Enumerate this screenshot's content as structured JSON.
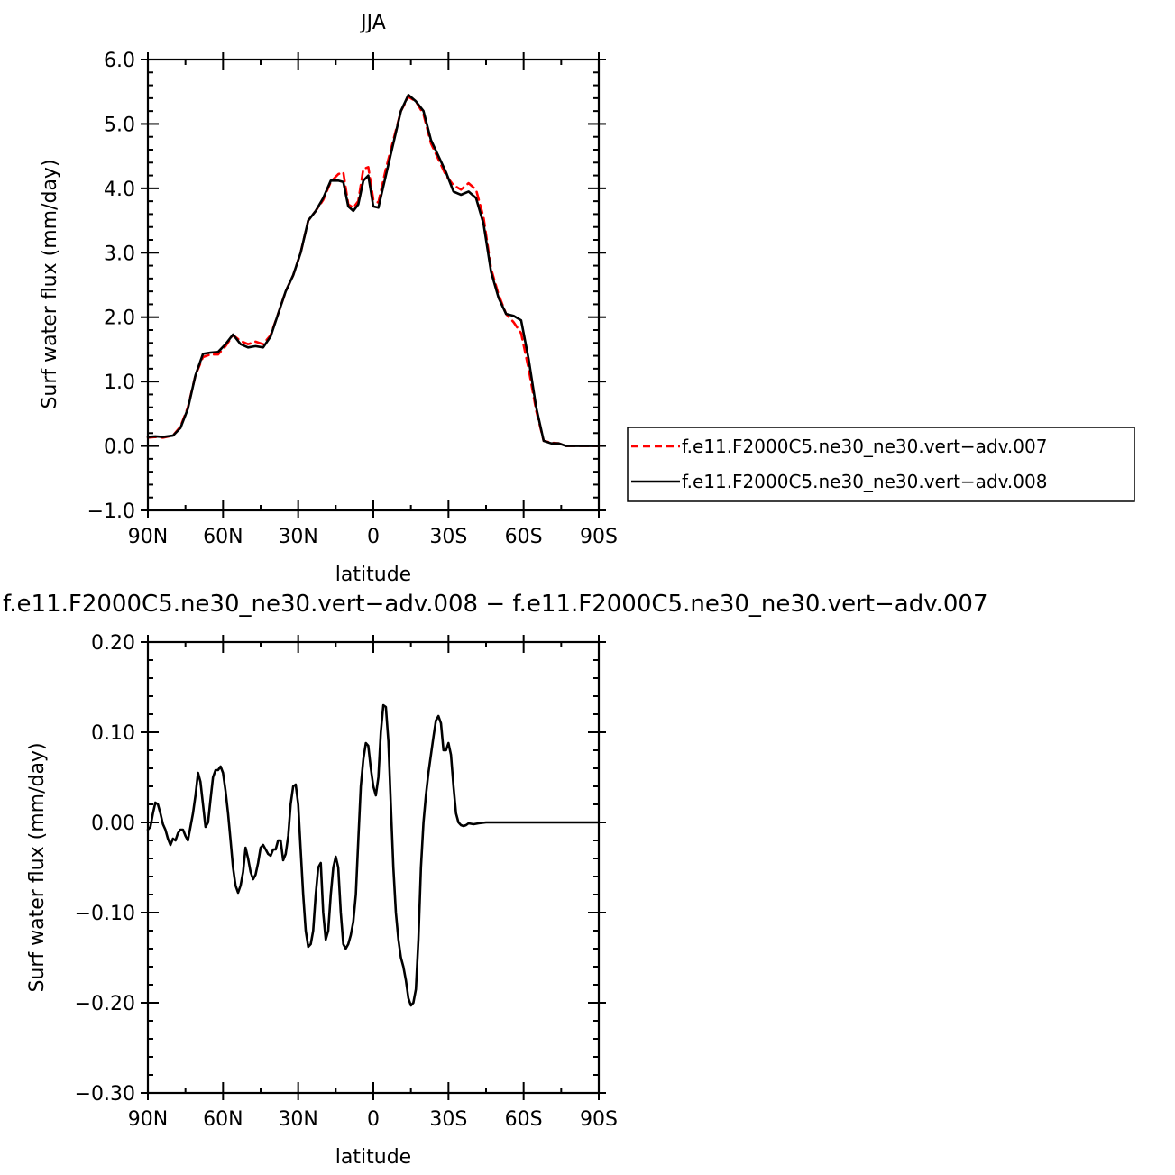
{
  "chart_data": [
    {
      "type": "line",
      "title": "JJA",
      "xlabel": "latitude",
      "ylabel": "Surf water flux (mm/day)",
      "xlim": [
        90,
        -90
      ],
      "ylim": [
        -1.0,
        6.0
      ],
      "x_tick_labels": [
        "90N",
        "60N",
        "30N",
        "0",
        "30S",
        "60S",
        "90S"
      ],
      "y_tick_labels": [
        "6.0",
        "5.0",
        "4.0",
        "3.0",
        "2.0",
        "1.0",
        "0.0",
        "−1.0"
      ],
      "legend_position": "right",
      "series": [
        {
          "name": "f.e11.F2000C5.ne30_ne30.vert−adv.007",
          "color": "#ff0000",
          "dash": "dashed",
          "points": [
            [
              90,
              0.13
            ],
            [
              87,
              0.14
            ],
            [
              84,
              0.13
            ],
            [
              80,
              0.16
            ],
            [
              77,
              0.3
            ],
            [
              74,
              0.6
            ],
            [
              71,
              1.1
            ],
            [
              68,
              1.38
            ],
            [
              65,
              1.42
            ],
            [
              62,
              1.42
            ],
            [
              59,
              1.55
            ],
            [
              56,
              1.72
            ],
            [
              53,
              1.63
            ],
            [
              50,
              1.58
            ],
            [
              47,
              1.62
            ],
            [
              44,
              1.58
            ],
            [
              41,
              1.72
            ],
            [
              38,
              2.05
            ],
            [
              35,
              2.4
            ],
            [
              32,
              2.65
            ],
            [
              29,
              3.0
            ],
            [
              26,
              3.5
            ],
            [
              23,
              3.65
            ],
            [
              20,
              3.82
            ],
            [
              17,
              4.1
            ],
            [
              14,
              4.22
            ],
            [
              12,
              4.25
            ],
            [
              10,
              3.75
            ],
            [
              8,
              3.7
            ],
            [
              6,
              3.8
            ],
            [
              4,
              4.3
            ],
            [
              2,
              4.33
            ],
            [
              0,
              3.82
            ],
            [
              -2,
              3.78
            ],
            [
              -5,
              4.3
            ],
            [
              -8,
              4.75
            ],
            [
              -11,
              5.2
            ],
            [
              -14,
              5.42
            ],
            [
              -17,
              5.35
            ],
            [
              -20,
              5.15
            ],
            [
              -23,
              4.7
            ],
            [
              -26,
              4.45
            ],
            [
              -29,
              4.2
            ],
            [
              -32,
              4.05
            ],
            [
              -35,
              3.98
            ],
            [
              -38,
              4.08
            ],
            [
              -41,
              3.98
            ],
            [
              -44,
              3.55
            ],
            [
              -47,
              2.75
            ],
            [
              -50,
              2.35
            ],
            [
              -53,
              2.05
            ],
            [
              -56,
              1.92
            ],
            [
              -59,
              1.75
            ],
            [
              -62,
              1.2
            ],
            [
              -65,
              0.55
            ],
            [
              -68,
              0.08
            ],
            [
              -71,
              0.05
            ],
            [
              -74,
              0.04
            ],
            [
              -77,
              0.0
            ],
            [
              -80,
              0.0
            ],
            [
              -84,
              0.0
            ],
            [
              -90,
              0.0
            ]
          ]
        },
        {
          "name": "f.e11.F2000C5.ne30_ne30.vert−adv.008",
          "color": "#000000",
          "dash": "solid",
          "points": [
            [
              90,
              0.14
            ],
            [
              87,
              0.15
            ],
            [
              84,
              0.14
            ],
            [
              80,
              0.16
            ],
            [
              77,
              0.28
            ],
            [
              74,
              0.58
            ],
            [
              71,
              1.1
            ],
            [
              68,
              1.43
            ],
            [
              65,
              1.45
            ],
            [
              62,
              1.46
            ],
            [
              59,
              1.58
            ],
            [
              56,
              1.73
            ],
            [
              53,
              1.58
            ],
            [
              50,
              1.53
            ],
            [
              47,
              1.55
            ],
            [
              44,
              1.53
            ],
            [
              41,
              1.7
            ],
            [
              38,
              2.05
            ],
            [
              35,
              2.4
            ],
            [
              32,
              2.65
            ],
            [
              29,
              3.0
            ],
            [
              26,
              3.5
            ],
            [
              23,
              3.65
            ],
            [
              20,
              3.85
            ],
            [
              17,
              4.12
            ],
            [
              14,
              4.12
            ],
            [
              12,
              4.1
            ],
            [
              10,
              3.72
            ],
            [
              8,
              3.65
            ],
            [
              6,
              3.75
            ],
            [
              4,
              4.12
            ],
            [
              2,
              4.2
            ],
            [
              0,
              3.72
            ],
            [
              -2,
              3.7
            ],
            [
              -5,
              4.2
            ],
            [
              -8,
              4.7
            ],
            [
              -11,
              5.2
            ],
            [
              -14,
              5.45
            ],
            [
              -17,
              5.35
            ],
            [
              -20,
              5.2
            ],
            [
              -23,
              4.75
            ],
            [
              -26,
              4.5
            ],
            [
              -29,
              4.25
            ],
            [
              -32,
              3.95
            ],
            [
              -35,
              3.9
            ],
            [
              -38,
              3.95
            ],
            [
              -41,
              3.85
            ],
            [
              -44,
              3.45
            ],
            [
              -47,
              2.7
            ],
            [
              -50,
              2.3
            ],
            [
              -53,
              2.05
            ],
            [
              -56,
              2.02
            ],
            [
              -59,
              1.95
            ],
            [
              -62,
              1.35
            ],
            [
              -65,
              0.6
            ],
            [
              -68,
              0.08
            ],
            [
              -71,
              0.04
            ],
            [
              -74,
              0.04
            ],
            [
              -77,
              0.0
            ],
            [
              -80,
              0.0
            ],
            [
              -84,
              0.0
            ],
            [
              -90,
              0.0
            ]
          ]
        }
      ]
    },
    {
      "type": "line",
      "title": "f.e11.F2000C5.ne30_ne30.vert−adv.008 − f.e11.F2000C5.ne30_ne30.vert−adv.007",
      "xlabel": "latitude",
      "ylabel": "Surf water flux (mm/day)",
      "xlim": [
        90,
        -90
      ],
      "ylim": [
        -0.3,
        0.2
      ],
      "x_tick_labels": [
        "90N",
        "60N",
        "30N",
        "0",
        "30S",
        "60S",
        "90S"
      ],
      "y_tick_labels": [
        "0.20",
        "0.10",
        "0.00",
        "−0.10",
        "−0.20",
        "−0.30"
      ],
      "series": [
        {
          "color": "#000000",
          "dash": "solid",
          "points": [
            [
              90,
              -0.008
            ],
            [
              89,
              -0.005
            ],
            [
              88,
              0.01
            ],
            [
              87,
              0.022
            ],
            [
              86,
              0.02
            ],
            [
              85,
              0.01
            ],
            [
              84,
              -0.002
            ],
            [
              83,
              -0.008
            ],
            [
              82,
              -0.018
            ],
            [
              81,
              -0.025
            ],
            [
              80,
              -0.018
            ],
            [
              79,
              -0.02
            ],
            [
              78,
              -0.012
            ],
            [
              77,
              -0.008
            ],
            [
              76,
              -0.008
            ],
            [
              75,
              -0.015
            ],
            [
              74,
              -0.02
            ],
            [
              73,
              -0.005
            ],
            [
              72,
              0.01
            ],
            [
              71,
              0.03
            ],
            [
              70,
              0.055
            ],
            [
              69,
              0.045
            ],
            [
              68,
              0.02
            ],
            [
              67,
              -0.005
            ],
            [
              66,
              0.0
            ],
            [
              65,
              0.025
            ],
            [
              64,
              0.05
            ],
            [
              63,
              0.058
            ],
            [
              62,
              0.058
            ],
            [
              61,
              0.062
            ],
            [
              60,
              0.055
            ],
            [
              59,
              0.035
            ],
            [
              58,
              0.01
            ],
            [
              57,
              -0.02
            ],
            [
              56,
              -0.05
            ],
            [
              55,
              -0.07
            ],
            [
              54,
              -0.078
            ],
            [
              53,
              -0.07
            ],
            [
              52,
              -0.055
            ],
            [
              51,
              -0.028
            ],
            [
              50,
              -0.04
            ],
            [
              49,
              -0.055
            ],
            [
              48,
              -0.063
            ],
            [
              47,
              -0.058
            ],
            [
              46,
              -0.045
            ],
            [
              45,
              -0.028
            ],
            [
              44,
              -0.025
            ],
            [
              43,
              -0.03
            ],
            [
              42,
              -0.035
            ],
            [
              41,
              -0.037
            ],
            [
              40,
              -0.03
            ],
            [
              39,
              -0.03
            ],
            [
              38,
              -0.02
            ],
            [
              37,
              -0.02
            ],
            [
              36,
              -0.042
            ],
            [
              35,
              -0.035
            ],
            [
              34,
              -0.015
            ],
            [
              33,
              0.02
            ],
            [
              32,
              0.04
            ],
            [
              31,
              0.042
            ],
            [
              30,
              0.02
            ],
            [
              29,
              -0.03
            ],
            [
              28,
              -0.08
            ],
            [
              27,
              -0.12
            ],
            [
              26,
              -0.138
            ],
            [
              25,
              -0.135
            ],
            [
              24,
              -0.12
            ],
            [
              23,
              -0.08
            ],
            [
              22,
              -0.05
            ],
            [
              21,
              -0.045
            ],
            [
              20,
              -0.1
            ],
            [
              19,
              -0.13
            ],
            [
              18,
              -0.12
            ],
            [
              17,
              -0.08
            ],
            [
              16,
              -0.05
            ],
            [
              15,
              -0.038
            ],
            [
              14,
              -0.05
            ],
            [
              13,
              -0.1
            ],
            [
              12,
              -0.135
            ],
            [
              11,
              -0.14
            ],
            [
              10,
              -0.135
            ],
            [
              9,
              -0.125
            ],
            [
              8,
              -0.11
            ],
            [
              7,
              -0.08
            ],
            [
              6,
              -0.02
            ],
            [
              5,
              0.04
            ],
            [
              4,
              0.07
            ],
            [
              3,
              0.088
            ],
            [
              2,
              0.085
            ],
            [
              1,
              0.06
            ],
            [
              0,
              0.04
            ],
            [
              -1,
              0.03
            ],
            [
              -2,
              0.05
            ],
            [
              -3,
              0.1
            ],
            [
              -4,
              0.13
            ],
            [
              -5,
              0.128
            ],
            [
              -6,
              0.09
            ],
            [
              -7,
              0.02
            ],
            [
              -8,
              -0.05
            ],
            [
              -9,
              -0.1
            ],
            [
              -10,
              -0.13
            ],
            [
              -11,
              -0.15
            ],
            [
              -12,
              -0.16
            ],
            [
              -13,
              -0.175
            ],
            [
              -14,
              -0.195
            ],
            [
              -15,
              -0.203
            ],
            [
              -16,
              -0.2
            ],
            [
              -17,
              -0.185
            ],
            [
              -18,
              -0.13
            ],
            [
              -19,
              -0.05
            ],
            [
              -20,
              0.0
            ],
            [
              -21,
              0.03
            ],
            [
              -22,
              0.055
            ],
            [
              -23,
              0.075
            ],
            [
              -24,
              0.095
            ],
            [
              -25,
              0.113
            ],
            [
              -26,
              0.118
            ],
            [
              -27,
              0.11
            ],
            [
              -28,
              0.08
            ],
            [
              -29,
              0.08
            ],
            [
              -30,
              0.088
            ],
            [
              -31,
              0.075
            ],
            [
              -32,
              0.04
            ],
            [
              -33,
              0.01
            ],
            [
              -34,
              0.0
            ],
            [
              -35,
              -0.003
            ],
            [
              -36,
              -0.004
            ],
            [
              -37,
              -0.003
            ],
            [
              -38,
              -0.001
            ],
            [
              -40,
              -0.002
            ],
            [
              -42,
              -0.001
            ],
            [
              -45,
              0.0
            ],
            [
              -50,
              0.0
            ],
            [
              -60,
              0.0
            ],
            [
              -70,
              0.0
            ],
            [
              -80,
              0.0
            ],
            [
              -90,
              0.0
            ]
          ]
        }
      ]
    }
  ]
}
